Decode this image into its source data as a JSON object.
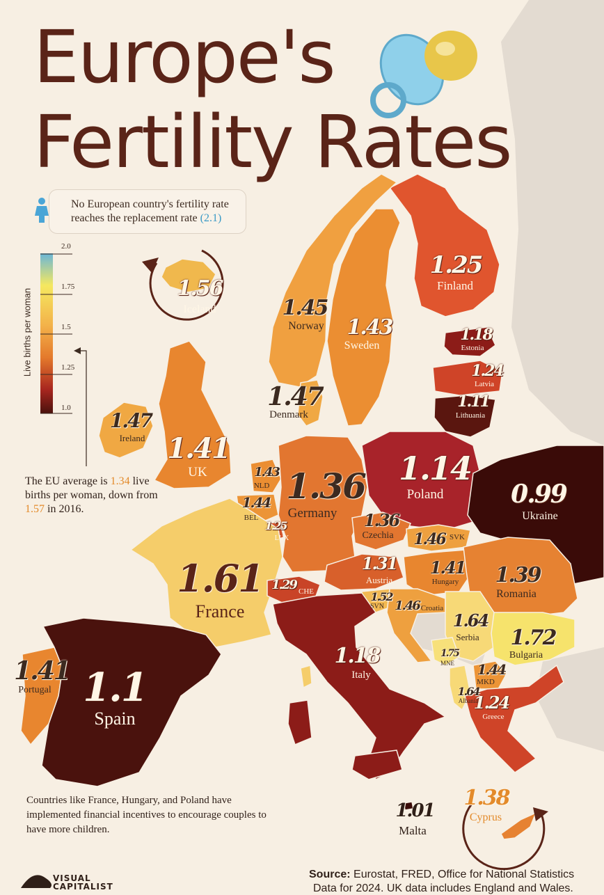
{
  "title": {
    "line1": "Europe's",
    "line2": "Fertility Rates"
  },
  "note": {
    "line1": "No European country's fertility rate",
    "line2_prefix": "reaches the replacement rate",
    "replacement_rate": "(2.1)",
    "icon": "children-icon"
  },
  "legend": {
    "title": "Live births per woman",
    "ticks": [
      "2.0",
      "1.75",
      "1.5",
      "1.25",
      "1.0"
    ],
    "colors": [
      "#6bb6d8",
      "#f5e860",
      "#f3b24a",
      "#e47a2c",
      "#a8261f",
      "#4a120d"
    ]
  },
  "eu_note": {
    "prefix": "The EU average is",
    "average": "1.34",
    "mid": "live births per woman,",
    "from_prefix": "down from",
    "previous": "1.57",
    "suffix": "in 2016."
  },
  "bottom_note": "Countries like France, Hungary, and Poland have implemented financial incentives to encourage couples to have more children.",
  "source": {
    "label": "Source:",
    "text": "Eurostat, FRED, Office for National Statistics",
    "line2": "Data for 2024. UK data includes England and Wales."
  },
  "brand": {
    "line1": "VISUAL",
    "line2": "CAPITALIST"
  },
  "countries": [
    {
      "id": "iceland",
      "rate": "1.56",
      "name": "Iceland",
      "color": "#f0b84d"
    },
    {
      "id": "finland",
      "rate": "1.25",
      "name": "Finland",
      "color": "#e0552e"
    },
    {
      "id": "norway",
      "rate": "1.45",
      "name": "Norway",
      "color": "#f0a040"
    },
    {
      "id": "sweden",
      "rate": "1.43",
      "name": "Sweden",
      "color": "#eb8e32"
    },
    {
      "id": "estonia",
      "rate": "1.18",
      "name": "Estonia",
      "color": "#8c1c18"
    },
    {
      "id": "latvia",
      "rate": "1.24",
      "name": "Latvia",
      "color": "#cf4428"
    },
    {
      "id": "lithuania",
      "rate": "1.11",
      "name": "Lithuania",
      "color": "#5a160f"
    },
    {
      "id": "denmark",
      "rate": "1.47",
      "name": "Denmark",
      "color": "#f0a843"
    },
    {
      "id": "ireland",
      "rate": "1.47",
      "name": "Ireland",
      "color": "#f0a843"
    },
    {
      "id": "uk",
      "rate": "1.41",
      "name": "UK",
      "color": "#e8862f"
    },
    {
      "id": "poland",
      "rate": "1.14",
      "name": "Poland",
      "color": "#a8232a"
    },
    {
      "id": "ukraine",
      "rate": "0.99",
      "name": "Ukraine",
      "color": "#3a0b08"
    },
    {
      "id": "nld",
      "rate": "1.43",
      "name": "NLD",
      "color": "#eb8e32"
    },
    {
      "id": "bel",
      "rate": "1.44",
      "name": "BEL",
      "color": "#ec9436"
    },
    {
      "id": "lux",
      "rate": "1.25",
      "name": "LUX",
      "color": "#d4532b"
    },
    {
      "id": "germany",
      "rate": "1.36",
      "name": "Germany",
      "color": "#e27630"
    },
    {
      "id": "czechia",
      "rate": "1.36",
      "name": "Czechia",
      "color": "#e27630"
    },
    {
      "id": "svk",
      "rate": "1.46",
      "name": "SVK",
      "color": "#eea03f"
    },
    {
      "id": "austria",
      "rate": "1.31",
      "name": "Austria",
      "color": "#d8602b"
    },
    {
      "id": "hungary",
      "rate": "1.41",
      "name": "Hungary",
      "color": "#e8862f"
    },
    {
      "id": "romania",
      "rate": "1.39",
      "name": "Romania",
      "color": "#e68232"
    },
    {
      "id": "france",
      "rate": "1.61",
      "name": "France",
      "color": "#f5cd6a"
    },
    {
      "id": "che",
      "rate": "1.29",
      "name": "CHE",
      "color": "#c94427"
    },
    {
      "id": "svn",
      "rate": "1.52",
      "name": "SVN",
      "color": "#f2b952"
    },
    {
      "id": "croatia",
      "rate": "1.46",
      "name": "Croatia",
      "color": "#eea03f"
    },
    {
      "id": "serbia",
      "rate": "1.64",
      "name": "Serbia",
      "color": "#f7d977"
    },
    {
      "id": "bulgaria",
      "rate": "1.72",
      "name": "Bulgaria",
      "color": "#f6e36c"
    },
    {
      "id": "mne",
      "rate": "1.75",
      "name": "MNE",
      "color": "#f7e07a"
    },
    {
      "id": "mkd",
      "rate": "1.44",
      "name": "MKD",
      "color": "#ec9436"
    },
    {
      "id": "albania",
      "rate": "1.64",
      "name": "Albania",
      "color": "#f7d977"
    },
    {
      "id": "greece",
      "rate": "1.24",
      "name": "Greece",
      "color": "#cf4428"
    },
    {
      "id": "portugal",
      "rate": "1.41",
      "name": "Portugal",
      "color": "#e8862f"
    },
    {
      "id": "spain",
      "rate": "1.1",
      "name": "Spain",
      "color": "#4a120d"
    },
    {
      "id": "italy",
      "rate": "1.18",
      "name": "Italy",
      "color": "#8c1c18"
    },
    {
      "id": "malta",
      "rate": "1.01",
      "name": "Malta",
      "color": "#3a0b08"
    },
    {
      "id": "cyprus",
      "rate": "1.38",
      "name": "Cyprus",
      "color": "#e68232"
    }
  ]
}
